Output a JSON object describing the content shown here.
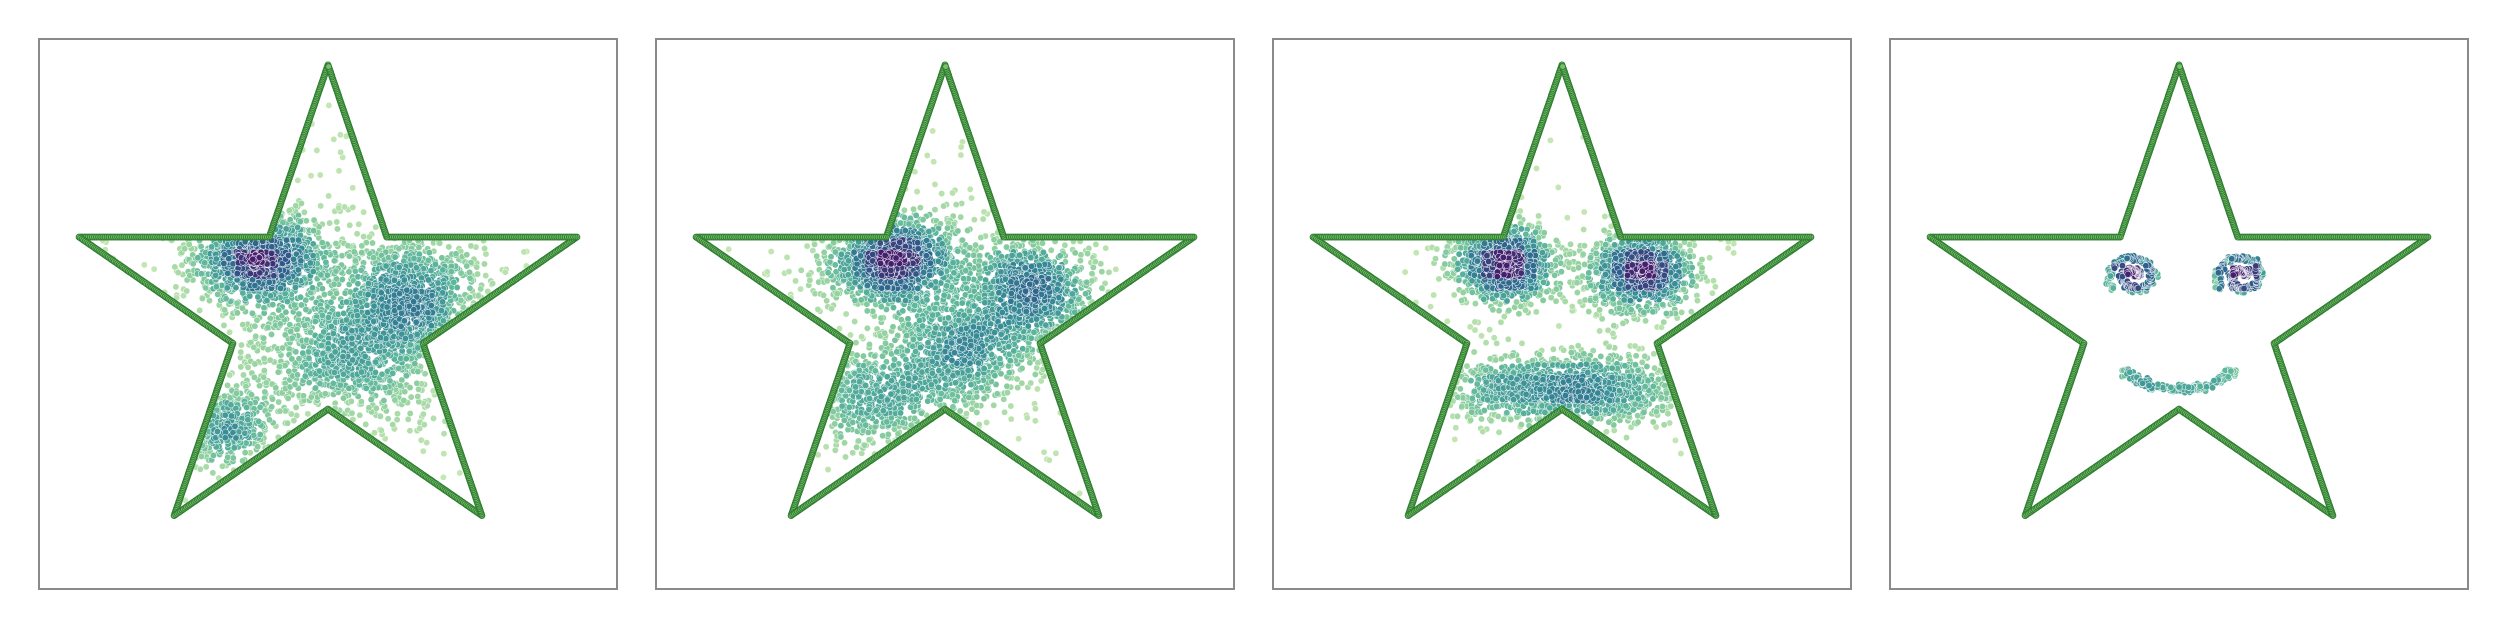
{
  "chart_data": [
    {
      "type": "scatter",
      "xlim": [
        -1.1,
        1.1
      ],
      "ylim": [
        -1.1,
        1.1
      ],
      "grid": false,
      "axes_visible": false,
      "colormap": "viridis",
      "point_edge_color": "#ffffff",
      "outline": {
        "shape": "five-point star",
        "color": "#2e7d32",
        "fill": "#7bbf6a",
        "point_count": 1000
      },
      "clusters": [
        {
          "center": [
            -0.25,
            0.22
          ],
          "spread": [
            0.13,
            0.09
          ],
          "count": 1100
        },
        {
          "center": [
            0.32,
            0.08
          ],
          "spread": [
            0.14,
            0.12
          ],
          "count": 800
        },
        {
          "center": [
            0.1,
            -0.15
          ],
          "spread": [
            0.18,
            0.14
          ],
          "count": 900
        },
        {
          "center": [
            -0.4,
            -0.45
          ],
          "spread": [
            0.11,
            0.08
          ],
          "count": 350
        },
        {
          "center": [
            0.0,
            0.0
          ],
          "spread": [
            0.55,
            0.45
          ],
          "count": 400
        }
      ]
    },
    {
      "type": "scatter",
      "xlim": [
        -1.1,
        1.1
      ],
      "ylim": [
        -1.1,
        1.1
      ],
      "grid": false,
      "axes_visible": false,
      "colormap": "viridis",
      "point_edge_color": "#ffffff",
      "outline": {
        "shape": "five-point star",
        "color": "#2e7d32",
        "fill": "#7bbf6a",
        "point_count": 1000
      },
      "clusters": [
        {
          "center": [
            -0.2,
            0.22
          ],
          "spread": [
            0.12,
            0.09
          ],
          "count": 1000
        },
        {
          "center": [
            0.32,
            0.1
          ],
          "spread": [
            0.13,
            0.1
          ],
          "count": 750
        },
        {
          "center": [
            0.05,
            -0.12
          ],
          "spread": [
            0.16,
            0.12
          ],
          "count": 800
        },
        {
          "center": [
            -0.3,
            -0.35
          ],
          "spread": [
            0.18,
            0.1
          ],
          "count": 450
        },
        {
          "center": [
            0.0,
            0.0
          ],
          "spread": [
            0.5,
            0.42
          ],
          "count": 350
        }
      ]
    },
    {
      "type": "scatter",
      "xlim": [
        -1.1,
        1.1
      ],
      "ylim": [
        -1.1,
        1.1
      ],
      "grid": false,
      "axes_visible": false,
      "colormap": "viridis",
      "point_edge_color": "#ffffff",
      "outline": {
        "shape": "five-point star",
        "color": "#2e7d32",
        "fill": "#7bbf6a",
        "point_count": 1000
      },
      "clusters": [
        {
          "center": [
            -0.22,
            0.2
          ],
          "spread": [
            0.1,
            0.08
          ],
          "count": 1000
        },
        {
          "center": [
            0.3,
            0.17
          ],
          "spread": [
            0.1,
            0.08
          ],
          "count": 1000
        },
        {
          "center": [
            0.0,
            -0.3
          ],
          "spread": [
            0.26,
            0.07
          ],
          "count": 1200
        },
        {
          "center": [
            0.0,
            0.0
          ],
          "spread": [
            0.3,
            0.3
          ],
          "count": 150
        }
      ]
    },
    {
      "type": "scatter",
      "xlim": [
        -1.1,
        1.1
      ],
      "ylim": [
        -1.1,
        1.1
      ],
      "grid": false,
      "axes_visible": false,
      "colormap": "viridis",
      "point_edge_color": "#ffffff",
      "outline": {
        "shape": "five-point star",
        "color": "#2e7d32",
        "fill": "#7bbf6a",
        "point_count": 1000
      },
      "face": {
        "left_eye": {
          "center": [
            -0.17,
            0.15
          ],
          "spiral_radius": 0.1,
          "count": 260
        },
        "right_eye": {
          "center": [
            0.24,
            0.15
          ],
          "spiral_radius": 0.1,
          "count": 260
        },
        "smile": {
          "center": [
            0.0,
            -0.18
          ],
          "radius": 0.22,
          "arc_degrees": [
            200,
            340
          ],
          "count": 260
        }
      }
    }
  ]
}
